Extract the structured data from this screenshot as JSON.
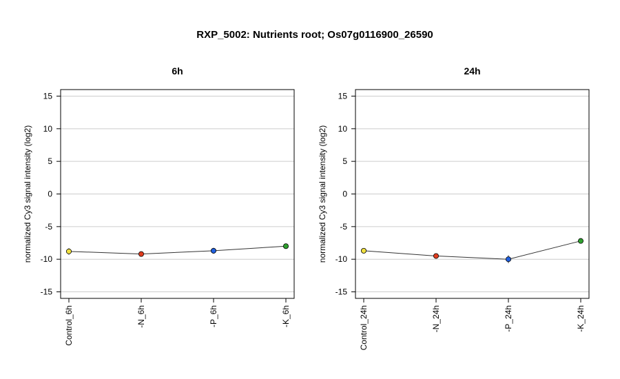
{
  "figure_title": "RXP_5002: Nutrients root; Os07g0116900_26590",
  "chart_data": [
    {
      "type": "line",
      "title": "6h",
      "ylabel": "normalized Cy3 signal intensity (log2)",
      "xlabel": "",
      "ylim": [
        -16,
        16
      ],
      "yticks": [
        -15,
        -10,
        -5,
        0,
        5,
        10,
        15
      ],
      "grid": true,
      "categories": [
        "Control_6h",
        "-N_6h",
        "-P_6h",
        "-K_6h"
      ],
      "values": [
        -8.8,
        -9.2,
        -8.7,
        -8.0
      ],
      "errors": [
        0.5,
        0.25,
        0.45,
        0.3
      ],
      "point_colors": [
        "#f0e040",
        "#e03c1e",
        "#2060e0",
        "#2ea02e"
      ]
    },
    {
      "type": "line",
      "title": "24h",
      "ylabel": "normalized Cy3 signal intensity (log2)",
      "xlabel": "",
      "ylim": [
        -16,
        16
      ],
      "yticks": [
        -15,
        -10,
        -5,
        0,
        5,
        10,
        15
      ],
      "grid": true,
      "categories": [
        "Control_24h",
        "-N_24h",
        "-P_24h",
        "-K_24h"
      ],
      "values": [
        -8.7,
        -9.5,
        -10.0,
        -7.2
      ],
      "errors": [
        0.3,
        0.3,
        0.6,
        0.25
      ],
      "point_colors": [
        "#f0e040",
        "#e03c1e",
        "#2060e0",
        "#2ea02e"
      ]
    }
  ]
}
